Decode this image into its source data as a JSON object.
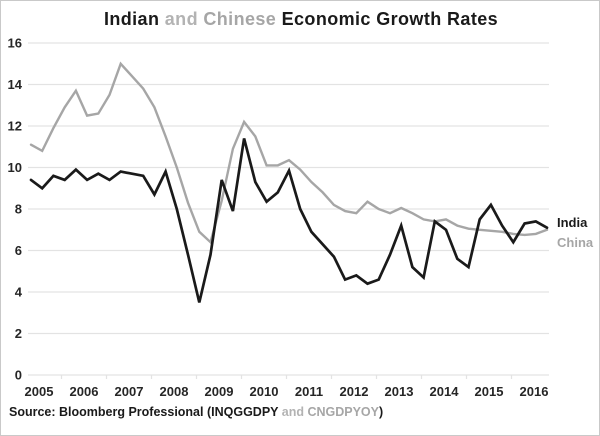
{
  "title": {
    "part1": "Indian",
    "part2": " and ",
    "part3": "Chinese ",
    "part4": "Economic Growth Rates"
  },
  "source": {
    "part1": "Source: Bloomberg Professional (INQGGDPY",
    "part2": " and ",
    "part3": "CNGDPYOY",
    "part4": ")"
  },
  "colors": {
    "india_line": "#1a1a1a",
    "china_line": "#a6a6a6",
    "muted_text": "#b3b3b3",
    "grid": "#e3e3e3",
    "axis_text": "#262626",
    "background": "#ffffff"
  },
  "chart_data": {
    "type": "line",
    "title": "Indian and Chinese Economic Growth Rates",
    "x_unit": "quarter",
    "x_start": "2005Q1",
    "x_end": "2016Q3",
    "x_tick_labels": [
      "2005",
      "2006",
      "2007",
      "2008",
      "2009",
      "2010",
      "2011",
      "2012",
      "2013",
      "2014",
      "2015",
      "2016"
    ],
    "ylim": [
      0,
      16
    ],
    "y_ticks": [
      0,
      2,
      4,
      6,
      8,
      10,
      12,
      14,
      16
    ],
    "grid": "horizontal",
    "legend_position": "right-of-line-ends",
    "series": [
      {
        "name": "India",
        "ticker": "INQGGDPY",
        "color": "#1a1a1a",
        "values": [
          9.4,
          9.0,
          9.6,
          9.4,
          9.9,
          9.4,
          9.7,
          9.4,
          9.8,
          9.7,
          9.6,
          8.7,
          9.8,
          8.0,
          5.8,
          3.5,
          5.8,
          9.4,
          7.9,
          11.4,
          9.3,
          8.35,
          8.8,
          9.85,
          8.0,
          6.9,
          6.3,
          5.7,
          4.6,
          4.8,
          4.4,
          4.6,
          5.8,
          7.2,
          5.2,
          4.7,
          7.4,
          7.0,
          5.6,
          5.2,
          7.5,
          8.2,
          7.2,
          6.4,
          7.3,
          7.4,
          7.1
        ]
      },
      {
        "name": "China",
        "ticker": "CNGDPYOY",
        "color": "#a6a6a6",
        "values": [
          11.1,
          10.8,
          11.9,
          12.9,
          13.7,
          12.5,
          12.6,
          13.5,
          15.0,
          14.4,
          13.8,
          12.9,
          11.5,
          10.0,
          8.3,
          6.9,
          6.4,
          8.4,
          10.9,
          12.2,
          11.5,
          10.1,
          10.1,
          10.35,
          9.9,
          9.3,
          8.8,
          8.2,
          7.9,
          7.8,
          8.35,
          8.0,
          7.8,
          8.05,
          7.8,
          7.5,
          7.4,
          7.5,
          7.2,
          7.05,
          7.0,
          6.95,
          6.9,
          6.8,
          6.75,
          6.8,
          7.0
        ]
      }
    ]
  }
}
